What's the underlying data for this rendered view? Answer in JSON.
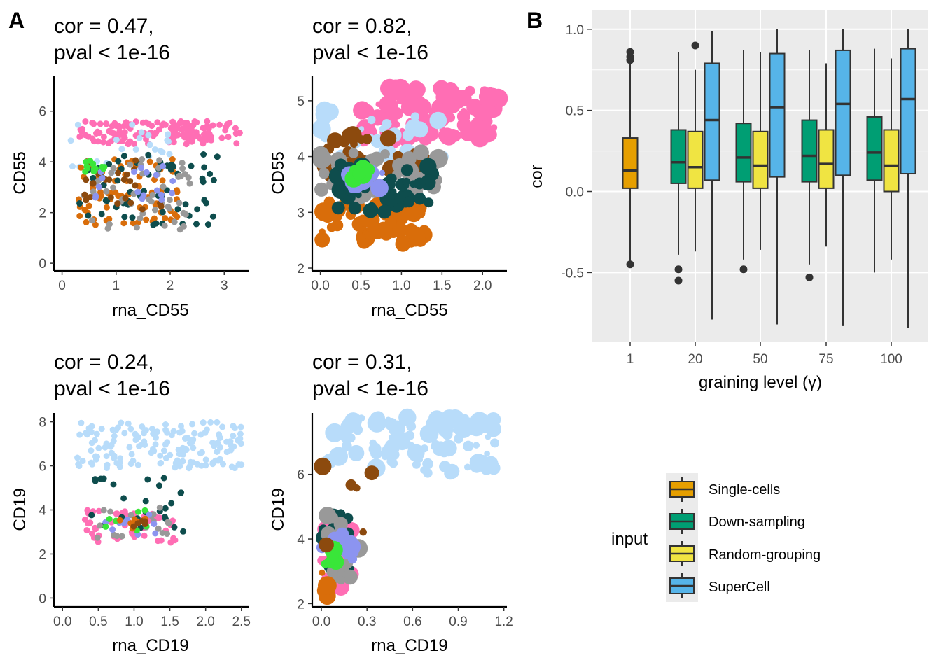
{
  "panel_labels": [
    "A",
    "B"
  ],
  "chart_data": [
    {
      "type": "scatter",
      "title_line1": "cor = 0.47,",
      "title_line2": "pval < 1e-16",
      "xlabel": "rna_CD55",
      "ylabel": "CD55",
      "xlim": [
        -0.15,
        3.45
      ],
      "ylim": [
        -0.3,
        7.4
      ],
      "xticks": [
        0,
        1,
        2,
        3
      ],
      "yticks": [
        0,
        2,
        4,
        6
      ],
      "xtick_labels": [
        "0",
        "1",
        "2",
        "3"
      ],
      "ytick_labels": [
        "0",
        "2",
        "4",
        "6"
      ],
      "point_size": "small",
      "clusters": [
        {
          "color": "#ff6eb4",
          "x": [
            0.3,
            3.3
          ],
          "y": [
            4.7,
            5.6
          ],
          "n": 150
        },
        {
          "color": "#b8dcfa",
          "x": [
            0.1,
            2.0
          ],
          "y": [
            3.5,
            5.5
          ],
          "n": 25
        },
        {
          "color": "#d96d0a",
          "x": [
            0.3,
            2.2
          ],
          "y": [
            1.5,
            4.2
          ],
          "n": 70
        },
        {
          "color": "#0e4d4d",
          "x": [
            0.3,
            2.9
          ],
          "y": [
            1.5,
            4.3
          ],
          "n": 60
        },
        {
          "color": "#999999",
          "x": [
            0.4,
            2.4
          ],
          "y": [
            1.3,
            4.2
          ],
          "n": 50
        },
        {
          "color": "#8c4a0e",
          "x": [
            0.4,
            2.0
          ],
          "y": [
            2.0,
            4.2
          ],
          "n": 25
        },
        {
          "color": "#8c94f0",
          "x": [
            0.6,
            2.3
          ],
          "y": [
            2.5,
            4.0
          ],
          "n": 18
        },
        {
          "color": "#39e639",
          "x": [
            0.4,
            0.8
          ],
          "y": [
            3.6,
            4.1
          ],
          "n": 12
        }
      ]
    },
    {
      "type": "scatter",
      "title_line1": "cor = 0.82,",
      "title_line2": "pval < 1e-16",
      "xlabel": "rna_CD55",
      "ylabel": "CD55",
      "xlim": [
        -0.1,
        2.3
      ],
      "ylim": [
        1.95,
        5.45
      ],
      "xticks": [
        0,
        0.5,
        1.0,
        1.5,
        2.0
      ],
      "yticks": [
        2,
        3,
        4,
        5
      ],
      "xtick_labels": [
        "0.0",
        "0.5",
        "1.0",
        "1.5",
        "2.0"
      ],
      "ytick_labels": [
        "2",
        "3",
        "4",
        "5"
      ],
      "point_size": "large",
      "clusters": [
        {
          "color": "#ff6eb4",
          "x": [
            0.5,
            2.2
          ],
          "y": [
            4.3,
            5.25
          ],
          "n": 120
        },
        {
          "color": "#b8dcfa",
          "x": [
            0.0,
            1.6
          ],
          "y": [
            3.8,
            4.9
          ],
          "n": 35
        },
        {
          "color": "#d96d0a",
          "x": [
            0.0,
            1.3
          ],
          "y": [
            2.4,
            3.2
          ],
          "n": 70
        },
        {
          "color": "#8c4a0e",
          "x": [
            0.0,
            1.3
          ],
          "y": [
            3.7,
            4.4
          ],
          "n": 30
        },
        {
          "color": "#999999",
          "x": [
            0.0,
            1.5
          ],
          "y": [
            3.3,
            4.1
          ],
          "n": 40
        },
        {
          "color": "#0e4d4d",
          "x": [
            0.2,
            1.4
          ],
          "y": [
            3.0,
            3.9
          ],
          "n": 40
        },
        {
          "color": "#8c94f0",
          "x": [
            0.3,
            0.8
          ],
          "y": [
            3.3,
            3.8
          ],
          "n": 12
        },
        {
          "color": "#39e639",
          "x": [
            0.4,
            0.65
          ],
          "y": [
            3.6,
            3.8
          ],
          "n": 6
        }
      ]
    },
    {
      "type": "scatter",
      "title_line1": "cor = 0.24,",
      "title_line2": "pval < 1e-16",
      "xlabel": "rna_CD19",
      "ylabel": "CD19",
      "xlim": [
        -0.12,
        2.6
      ],
      "ylim": [
        -0.4,
        8.4
      ],
      "xticks": [
        0,
        0.5,
        1.0,
        1.5,
        2.0,
        2.5
      ],
      "yticks": [
        0,
        2,
        4,
        6,
        8
      ],
      "xtick_labels": [
        "0.0",
        "0.5",
        "1.0",
        "1.5",
        "2.0",
        "2.5"
      ],
      "ytick_labels": [
        "0",
        "2",
        "4",
        "6",
        "8"
      ],
      "point_size": "small",
      "clusters": [
        {
          "color": "#b8dcfa",
          "x": [
            0.2,
            2.5
          ],
          "y": [
            5.9,
            8.0
          ],
          "n": 160
        },
        {
          "color": "#ff6eb4",
          "x": [
            0.3,
            1.6
          ],
          "y": [
            2.5,
            4.0
          ],
          "n": 50
        },
        {
          "color": "#0e4d4d",
          "x": [
            0.4,
            1.7
          ],
          "y": [
            3.0,
            5.5
          ],
          "n": 25
        },
        {
          "color": "#999999",
          "x": [
            0.4,
            1.5
          ],
          "y": [
            2.6,
            4.2
          ],
          "n": 20
        },
        {
          "color": "#8c94f0",
          "x": [
            0.5,
            1.3
          ],
          "y": [
            2.8,
            4.0
          ],
          "n": 10
        },
        {
          "color": "#39e639",
          "x": [
            0.3,
            1.2
          ],
          "y": [
            3.0,
            4.0
          ],
          "n": 8
        },
        {
          "color": "#d96d0a",
          "x": [
            0.8,
            1.5
          ],
          "y": [
            3.0,
            3.6
          ],
          "n": 8
        },
        {
          "color": "#8c4a0e",
          "x": [
            0.9,
            1.2
          ],
          "y": [
            3.0,
            3.5
          ],
          "n": 5
        }
      ]
    },
    {
      "type": "scatter",
      "title_line1": "cor = 0.31,",
      "title_line2": "pval < 1e-16",
      "xlabel": "rna_CD19",
      "ylabel": "CD19",
      "xlim": [
        -0.06,
        1.22
      ],
      "ylim": [
        1.9,
        7.9
      ],
      "xticks": [
        0,
        0.3,
        0.6,
        0.9,
        1.2
      ],
      "yticks": [
        2,
        4,
        6
      ],
      "xtick_labels": [
        "0.0",
        "0.3",
        "0.6",
        "0.9",
        "1.2"
      ],
      "ytick_labels": [
        "2",
        "4",
        "6"
      ],
      "point_size": "large",
      "clusters": [
        {
          "color": "#b8dcfa",
          "x": [
            0.05,
            1.18
          ],
          "y": [
            6.0,
            7.8
          ],
          "n": 100
        },
        {
          "color": "#ff6eb4",
          "x": [
            0.0,
            0.2
          ],
          "y": [
            2.4,
            4.6
          ],
          "n": 30
        },
        {
          "color": "#0e4d4d",
          "x": [
            0.0,
            0.2
          ],
          "y": [
            3.0,
            4.8
          ],
          "n": 20
        },
        {
          "color": "#999999",
          "x": [
            0.0,
            0.25
          ],
          "y": [
            2.6,
            5.0
          ],
          "n": 18
        },
        {
          "color": "#8c94f0",
          "x": [
            0.0,
            0.25
          ],
          "y": [
            3.3,
            4.2
          ],
          "n": 10
        },
        {
          "color": "#39e639",
          "x": [
            0.0,
            0.12
          ],
          "y": [
            3.1,
            3.7
          ],
          "n": 8
        },
        {
          "color": "#8c4a0e",
          "x": [
            0.0,
            0.35
          ],
          "y": [
            3.5,
            6.5
          ],
          "n": 6
        },
        {
          "color": "#d96d0a",
          "x": [
            0.0,
            0.05
          ],
          "y": [
            2.2,
            3.0
          ],
          "n": 5
        }
      ]
    },
    {
      "type": "box",
      "xlabel": "graining level (γ)",
      "ylabel": "cor",
      "categories": [
        "1",
        "20",
        "50",
        "75",
        "100"
      ],
      "ylim": [
        -0.93,
        1.12
      ],
      "yticks": [
        -0.5,
        0.0,
        0.5,
        1.0
      ],
      "ytick_labels": [
        "-0.5",
        "0.0",
        "0.5",
        "1.0"
      ],
      "grid": true,
      "legend": {
        "title": "input",
        "position": "right",
        "items": [
          "Single-cells",
          "Down-sampling",
          "Random-grouping",
          "SuperCell"
        ]
      },
      "colors": [
        "#e69f00",
        "#009e73",
        "#f0e442",
        "#56b4e9"
      ],
      "boxes": [
        {
          "category": "1",
          "group": "Single-cells",
          "low": -0.45,
          "q1": 0.02,
          "median": 0.13,
          "q3": 0.33,
          "high": 0.79,
          "outliers": [
            0.86,
            0.83,
            0.81,
            -0.45
          ]
        },
        {
          "category": "20",
          "group": "Down-sampling",
          "low": -0.39,
          "q1": 0.05,
          "median": 0.18,
          "q3": 0.38,
          "high": 0.86,
          "outliers": [
            -0.48,
            -0.55
          ]
        },
        {
          "category": "20",
          "group": "Random-grouping",
          "low": -0.37,
          "q1": 0.02,
          "median": 0.15,
          "q3": 0.37,
          "high": 0.75,
          "outliers": [
            0.9
          ]
        },
        {
          "category": "20",
          "group": "SuperCell",
          "low": -0.79,
          "q1": 0.07,
          "median": 0.44,
          "q3": 0.79,
          "high": 0.99,
          "outliers": []
        },
        {
          "category": "50",
          "group": "Down-sampling",
          "low": -0.42,
          "q1": 0.06,
          "median": 0.21,
          "q3": 0.42,
          "high": 0.87,
          "outliers": [
            -0.48
          ]
        },
        {
          "category": "50",
          "group": "Random-grouping",
          "low": -0.36,
          "q1": 0.02,
          "median": 0.16,
          "q3": 0.37,
          "high": 0.86,
          "outliers": []
        },
        {
          "category": "50",
          "group": "SuperCell",
          "low": -0.82,
          "q1": 0.09,
          "median": 0.52,
          "q3": 0.85,
          "high": 1.0,
          "outliers": []
        },
        {
          "category": "75",
          "group": "Down-sampling",
          "low": -0.45,
          "q1": 0.06,
          "median": 0.22,
          "q3": 0.44,
          "high": 0.87,
          "outliers": [
            -0.53
          ]
        },
        {
          "category": "75",
          "group": "Random-grouping",
          "low": -0.34,
          "q1": 0.02,
          "median": 0.17,
          "q3": 0.38,
          "high": 0.79,
          "outliers": []
        },
        {
          "category": "75",
          "group": "SuperCell",
          "low": -0.83,
          "q1": 0.1,
          "median": 0.54,
          "q3": 0.87,
          "high": 1.0,
          "outliers": []
        },
        {
          "category": "100",
          "group": "Down-sampling",
          "low": -0.5,
          "q1": 0.07,
          "median": 0.24,
          "q3": 0.46,
          "high": 0.88,
          "outliers": []
        },
        {
          "category": "100",
          "group": "Random-grouping",
          "low": -0.42,
          "q1": 0.0,
          "median": 0.16,
          "q3": 0.38,
          "high": 0.82,
          "outliers": []
        },
        {
          "category": "100",
          "group": "SuperCell",
          "low": -0.84,
          "q1": 0.11,
          "median": 0.57,
          "q3": 0.88,
          "high": 1.0,
          "outliers": []
        }
      ]
    }
  ]
}
